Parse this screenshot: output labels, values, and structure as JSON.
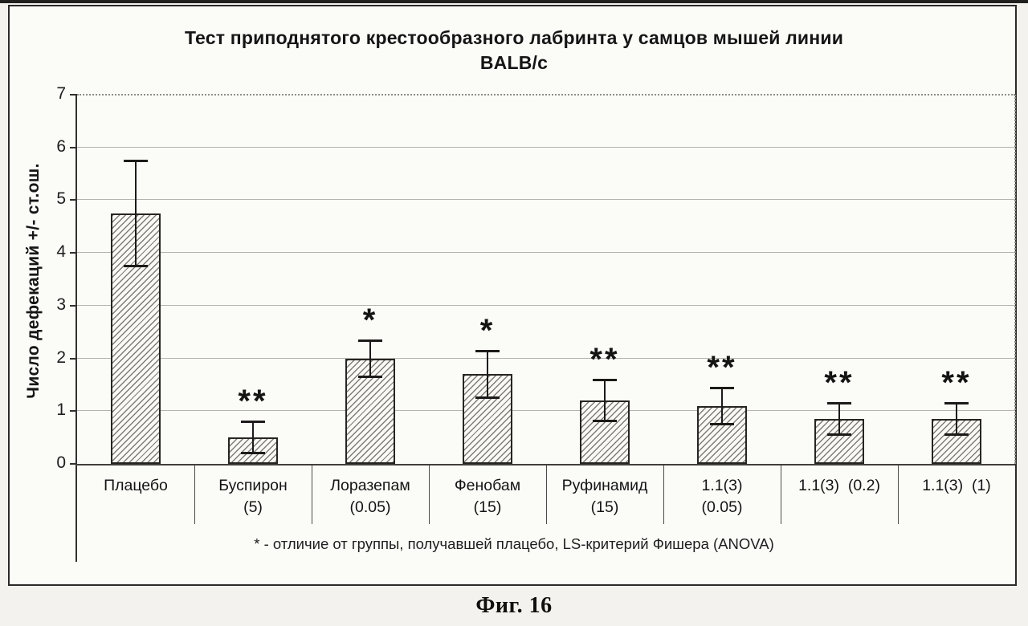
{
  "figure": {
    "title_line1": "Тест приподнятого крестообразного лабринта у самцов мышей линии",
    "title_line2": "BALB/c",
    "footnote": "* - отличие от группы, получавшей плацебо, LS-критерий Фишера (ANOVA)",
    "caption": "Фиг. 16"
  },
  "chart_data": {
    "type": "bar",
    "title": "Тест приподнятого крестообразного лабринта у самцов мышей линии BALB/c",
    "xlabel": "",
    "ylabel": "Число дефекаций +/- ст.ош.",
    "ylim": [
      0,
      7
    ],
    "yticks": [
      0,
      1,
      2,
      3,
      4,
      5,
      6,
      7
    ],
    "grid": "horizontal",
    "legend": "none",
    "categories": [
      "Плацебо",
      "Буспирон (5)",
      "Лоразепам (0.05)",
      "Фенобам (15)",
      "Руфинамид (15)",
      "1.1(3) (0.05)",
      "1.1(3)  (0.2)",
      "1.1(3)  (1)"
    ],
    "category_label_lines": [
      [
        "Плацебо"
      ],
      [
        "Буспирон",
        "(5)"
      ],
      [
        "Лоразепам",
        "(0.05)"
      ],
      [
        "Фенобам",
        "(15)"
      ],
      [
        "Руфинамид",
        "(15)"
      ],
      [
        "1.1(3)",
        "(0.05)"
      ],
      [
        "1.1(3)  (0.2)"
      ],
      [
        "1.1(3)  (1)"
      ]
    ],
    "values": [
      4.75,
      0.5,
      2.0,
      1.7,
      1.2,
      1.1,
      0.85,
      0.85
    ],
    "errors": [
      1.0,
      0.3,
      0.35,
      0.45,
      0.4,
      0.35,
      0.3,
      0.3
    ],
    "significance": [
      "",
      "**",
      "*",
      "*",
      "**",
      "**",
      "**",
      "**"
    ],
    "error_bar_style": "plus-minus caps",
    "bar_fill": "diagonal-hatch /",
    "footnote": "* - отличие от группы, получавшей плацебо, LS-критерий Фишера (ANOVA)",
    "colors": {
      "bar_outline": "#262522",
      "hatch_line": "#4e4c47",
      "bar_background": "#faf9f5",
      "gridline": "#b5b3ae",
      "axis": "#32312f",
      "text": "#161616",
      "frame_background": "#fbfbf8",
      "page_background": "#f3f2ee"
    }
  }
}
